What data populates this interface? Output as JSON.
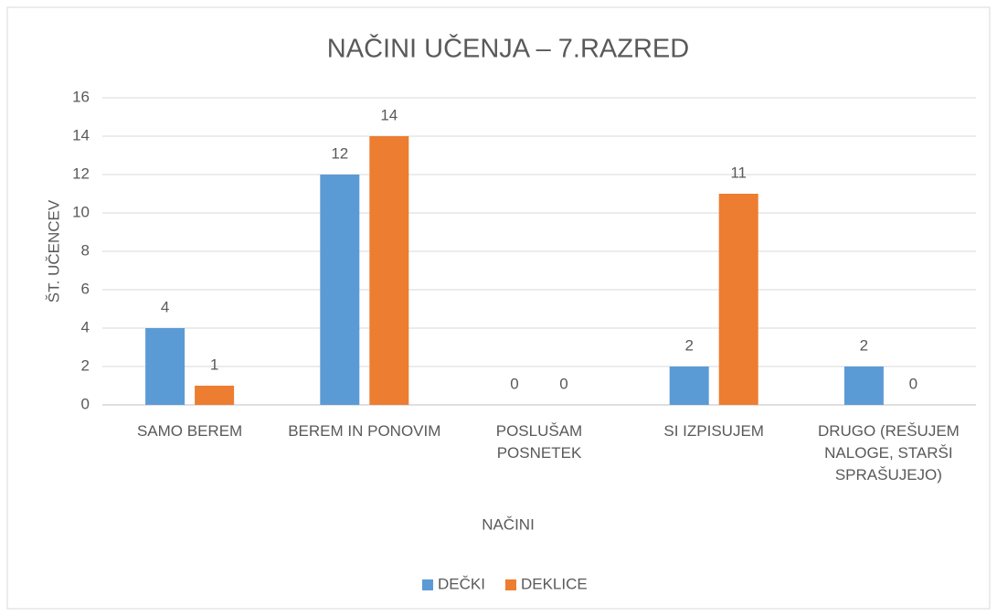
{
  "chart_data": {
    "type": "bar",
    "title": "NAČINI UČENJA – 7.RAZRED",
    "x_label": "NAČINI",
    "y_label": "ŠT. UČENCEV",
    "categories": [
      "SAMO BEREM",
      "BEREM IN PONOVIM",
      "POSLUŠAM POSNETEK",
      "SI IZPISUJEM",
      "DRUGO (REŠUJEM NALOGE, STARŠI SPRAŠUJEJO)"
    ],
    "series": [
      {
        "name": "DEČKI",
        "color": "#5b9bd5",
        "values": [
          4,
          12,
          0,
          2,
          2
        ]
      },
      {
        "name": "DEKLICE",
        "color": "#ed7d31",
        "values": [
          1,
          14,
          0,
          11,
          0
        ]
      }
    ],
    "ylim": [
      0,
      16
    ],
    "yticks": [
      0,
      2,
      4,
      6,
      8,
      10,
      12,
      14,
      16
    ],
    "grid": true,
    "legend": "bottom"
  }
}
